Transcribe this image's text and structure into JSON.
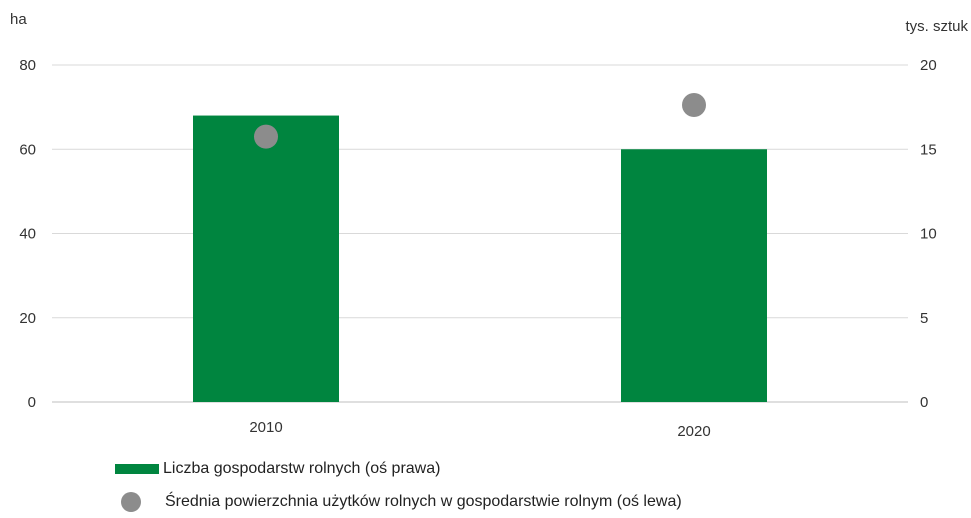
{
  "chart_data": {
    "type": "bar",
    "categories": [
      "2010",
      "2020"
    ],
    "series": [
      {
        "name": "Liczba gospodarstw rolnych (oś prawa)",
        "kind": "bar",
        "axis": "right",
        "values": [
          17.0,
          15.0
        ],
        "color": "#00853f"
      },
      {
        "name": "Średnia powierzchnia użytków rolnych w gospodarstwie rolnym (oś lewa)",
        "kind": "scatter",
        "axis": "left",
        "values": [
          63.0,
          70.5
        ],
        "color": "#8c8c8c"
      }
    ],
    "y_left": {
      "unit": "ha",
      "ticks": [
        "80",
        "60",
        "40",
        "20",
        "0"
      ],
      "ylim": [
        0,
        80
      ]
    },
    "y_right": {
      "unit": "tys. sztuk",
      "ticks": [
        "20",
        "15",
        "10",
        "5",
        "0"
      ],
      "ylim": [
        0,
        20
      ]
    },
    "grid": true,
    "legend_position": "bottom-left"
  }
}
